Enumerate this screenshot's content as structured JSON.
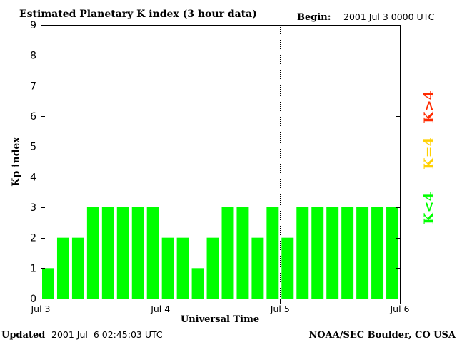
{
  "title": "Estimated Planetary K index (3 hour data)",
  "begin_label": "Begin:",
  "begin_value": "2001 Jul 3 0000 UTC",
  "updated_label": "Updated",
  "updated_value": "2001 Jul  6 02:45:03 UTC",
  "credit": "NOAA/SEC Boulder, CO USA",
  "legend": [
    {
      "label": "K>4",
      "color": "#ff2a00"
    },
    {
      "label": "K=4",
      "color": "#ffd000"
    },
    {
      "label": "K<4",
      "color": "#00ff00"
    }
  ],
  "chart_data": {
    "type": "bar",
    "title": "Estimated Planetary K index (3 hour data)",
    "xlabel": "Universal Time",
    "ylabel": "Kp index",
    "ylim": [
      0,
      9
    ],
    "yticks": [
      0,
      1,
      2,
      3,
      4,
      5,
      6,
      7,
      8,
      9
    ],
    "x_tick_labels": [
      "Jul 3",
      "Jul 4",
      "Jul 5",
      "Jul 6"
    ],
    "bar_color": "#00ff00",
    "values": [
      1,
      2,
      2,
      3,
      3,
      3,
      3,
      3,
      2,
      2,
      1,
      2,
      3,
      3,
      2,
      3,
      2,
      3,
      3,
      3,
      3,
      3,
      3,
      3
    ]
  }
}
